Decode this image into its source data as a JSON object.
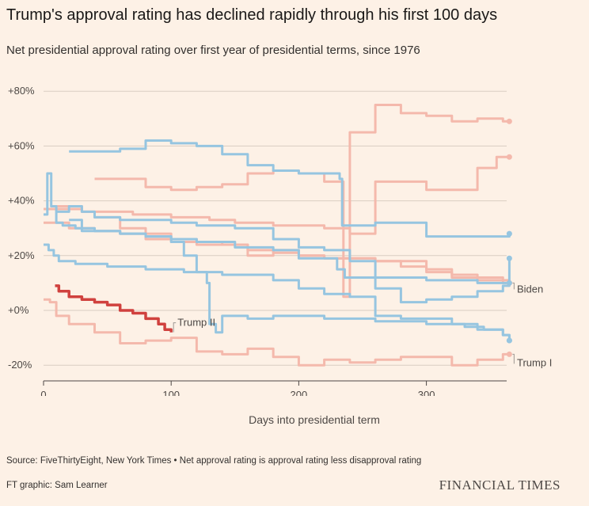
{
  "title": "Trump's approval rating has declined rapidly through his first 100 days",
  "subtitle": "Net presidential approval rating over first year of presidential terms, since 1976",
  "source": "Source: FiveThirtyEight, New York Times • Net approval rating is approval rating less disapproval rating",
  "credit": "FT graphic: Sam Learner",
  "logo": "FINANCIAL TIMES",
  "chart_data": {
    "type": "line",
    "xlabel": "Days into presidential term",
    "ylabel": "",
    "xlim": [
      0,
      370
    ],
    "ylim": [
      -25,
      85
    ],
    "yticks": [
      -20,
      0,
      20,
      40,
      60,
      80
    ],
    "ytick_labels": [
      "-20%",
      "+0%",
      "+20%",
      "+40%",
      "+60%",
      "+80%"
    ],
    "xticks": [
      0,
      100,
      200,
      300
    ],
    "xtick_labels": [
      "0",
      "100",
      "200",
      "300"
    ],
    "grid": true,
    "colors": {
      "democrat": "#96c5e0",
      "republican": "#f4b9ac",
      "trump2": "#d0413e",
      "axis": "#4d4845",
      "grid": "#d9cdc2"
    },
    "series": [
      {
        "name": "",
        "party": "D",
        "x": [
          0,
          4,
          8,
          12,
          18,
          25,
          35,
          50,
          80,
          110,
          140,
          180,
          200,
          220,
          240,
          260,
          280,
          300,
          320,
          340,
          360,
          365
        ],
        "y": [
          24,
          22,
          20,
          18,
          18,
          17,
          17,
          16,
          15,
          14,
          13,
          11,
          8,
          6,
          5,
          -2,
          -3,
          -3,
          -5,
          -7,
          -9,
          -11
        ]
      },
      {
        "name": "Biden",
        "label": "Biden",
        "party": "D",
        "x": [
          20,
          30,
          40,
          60,
          80,
          100,
          120,
          150,
          180,
          200,
          230,
          236,
          260,
          300,
          340,
          365
        ],
        "y": [
          33,
          30,
          29,
          28,
          27,
          26,
          25,
          23,
          22,
          19,
          15,
          12,
          12,
          11,
          10,
          10
        ]
      },
      {
        "name": "",
        "party": "D",
        "x": [
          20,
          40,
          60,
          80,
          100,
          120,
          140,
          160,
          180,
          200,
          220,
          232,
          234,
          260,
          300,
          340,
          365
        ],
        "y": [
          58,
          58,
          59,
          62,
          61,
          60,
          57,
          53,
          51,
          50,
          50,
          48,
          31,
          32,
          27,
          27,
          28
        ]
      },
      {
        "name": "",
        "party": "D",
        "x": [
          0,
          3,
          6,
          10,
          15,
          25,
          30,
          40,
          60,
          80,
          100,
          110,
          120,
          128,
          130,
          135,
          140,
          160,
          180,
          200,
          220,
          240,
          260,
          300,
          330,
          345,
          360,
          365
        ],
        "y": [
          35,
          50,
          38,
          32,
          31,
          30,
          29,
          29,
          28,
          27,
          25,
          20,
          14,
          10,
          -5,
          -8,
          -2,
          -3,
          -2,
          -2,
          -3,
          -3,
          -4,
          -5,
          -6,
          -7,
          -9,
          -11
        ]
      },
      {
        "name": "",
        "party": "D",
        "x": [
          10,
          15,
          20,
          30,
          40,
          60,
          80,
          100,
          120,
          150,
          180,
          200,
          220,
          240,
          260,
          280,
          300,
          320,
          340,
          360,
          365
        ],
        "y": [
          36,
          36,
          38,
          36,
          34,
          33,
          33,
          32,
          31,
          30,
          26,
          23,
          22,
          18,
          8,
          3,
          4,
          5,
          7,
          9,
          19
        ]
      },
      {
        "name": "",
        "party": "R",
        "x": [
          40,
          60,
          80,
          100,
          120,
          140,
          160,
          180,
          200,
          220,
          230,
          235,
          240,
          260,
          280,
          300,
          320,
          340,
          355,
          360,
          365
        ],
        "y": [
          48,
          48,
          45,
          44,
          45,
          46,
          50,
          51,
          50,
          47,
          47,
          5,
          65,
          75,
          72,
          71,
          69,
          70,
          70,
          69,
          69
        ]
      },
      {
        "name": "",
        "party": "R",
        "x": [
          0,
          15,
          30,
          50,
          70,
          100,
          130,
          150,
          180,
          200,
          220,
          240,
          260,
          300,
          340,
          355,
          360,
          365
        ],
        "y": [
          37,
          37,
          36,
          36,
          35,
          34,
          33,
          32,
          31,
          31,
          30,
          28,
          47,
          44,
          52,
          56,
          56,
          56
        ]
      },
      {
        "name": "",
        "party": "R",
        "x": [
          0,
          20,
          40,
          60,
          80,
          100,
          120,
          140,
          160,
          180,
          200,
          220,
          240,
          260,
          280,
          300,
          320,
          340,
          360,
          365
        ],
        "y": [
          32,
          30,
          29,
          28,
          26,
          25,
          24,
          24,
          22,
          21,
          20,
          19,
          19,
          18,
          18,
          14,
          13,
          12,
          11,
          10
        ]
      },
      {
        "name": "",
        "party": "R",
        "x": [
          10,
          20,
          30,
          40,
          60,
          80,
          100,
          120,
          140,
          160,
          180,
          200,
          220,
          240,
          260,
          280,
          300,
          320,
          340,
          360,
          365
        ],
        "y": [
          38,
          38,
          36,
          34,
          30,
          28,
          26,
          25,
          24,
          20,
          22,
          20,
          19,
          19,
          18,
          16,
          15,
          12,
          11,
          10,
          10
        ]
      },
      {
        "name": "Trump I",
        "label": "Trump I",
        "party": "R",
        "x": [
          0,
          5,
          10,
          20,
          40,
          60,
          80,
          100,
          120,
          140,
          160,
          180,
          200,
          220,
          240,
          260,
          280,
          300,
          320,
          340,
          360,
          365
        ],
        "y": [
          4,
          3,
          -2,
          -5,
          -8,
          -12,
          -11,
          -10,
          -15,
          -16,
          -14,
          -17,
          -20,
          -18,
          -19,
          -18,
          -17,
          -17,
          -20,
          -18,
          -16,
          -16
        ]
      },
      {
        "name": "Trump II",
        "label": "Trump II",
        "party": "R2",
        "x": [
          9,
          12,
          20,
          30,
          40,
          50,
          60,
          70,
          80,
          90,
          95,
          100
        ],
        "y": [
          9,
          7,
          5,
          4,
          3,
          2,
          0,
          -1,
          -3,
          -5,
          -7,
          -8
        ]
      }
    ]
  }
}
